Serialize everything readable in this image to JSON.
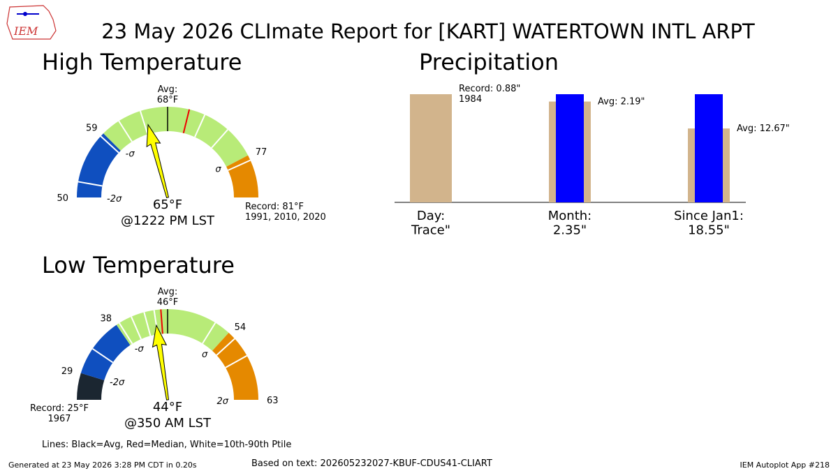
{
  "title": "23 May 2026 CLImate Report for [KART] WATERTOWN INTL ARPT",
  "logo": "IEM",
  "legend_note": "Lines: Black=Avg, Red=Median, White=10th-90th Ptile",
  "footer_left": "Generated at 23 May 2026 3:28 PM CDT in 0.20s",
  "footer_center": "Based on text: 202605232027-KBUF-CDUS41-CLIART",
  "footer_right": "IEM Autoplot App #218",
  "chart_data": [
    {
      "type": "gauge",
      "title": "High Temperature",
      "range": [
        50,
        81
      ],
      "avg": 68,
      "avg_label": "Avg:\n68°F",
      "median": 70,
      "percentiles": [
        52,
        58.5,
        61.5,
        64.5,
        71.5,
        74,
        77.5
      ],
      "value": 65,
      "value_label": "65°F",
      "time_label": "@1222 PM LST",
      "record_label": "Record: 81°F\n1991, 2010, 2020",
      "ticks": [
        50,
        59,
        77
      ],
      "sigma_marks": [
        {
          "value": 50,
          "label": "-2σ"
        },
        {
          "value": 59,
          "label": "-σ"
        },
        {
          "value": 77,
          "label": "σ"
        }
      ],
      "bands": [
        {
          "from": 50,
          "to": 59,
          "color": "#0f4fbf"
        },
        {
          "from": 59,
          "to": 77,
          "color": "#b8eb78"
        },
        {
          "from": 77,
          "to": 81,
          "color": "#e58900"
        }
      ]
    },
    {
      "type": "bar",
      "title": "Precipitation",
      "categories": [
        "Day:\nTrace\"",
        "Month:\n2.35\"",
        "Since Jan1:\n18.55\""
      ],
      "reference": {
        "color": "#d2b48c",
        "values": [
          0.88,
          2.19,
          12.67
        ],
        "value_labels": [
          "Record: 0.88\"\n1984",
          "Avg: 2.19\"",
          "Avg: 12.67\""
        ]
      },
      "observed": {
        "color": "#0000ff",
        "values": [
          null,
          2.35,
          18.55
        ]
      }
    },
    {
      "type": "gauge",
      "title": "Low Temperature",
      "range": [
        25,
        63
      ],
      "avg": 46,
      "avg_label": "Avg:\n46°F",
      "median": 45,
      "percentiles": [
        33,
        38.5,
        40.5,
        42.5,
        44,
        52,
        55,
        57.5
      ],
      "value": 44,
      "value_label": "44°F",
      "time_label": "@350 AM LST",
      "record_label": "Record: 25°F\n1967",
      "ticks": [
        29,
        38,
        54,
        63
      ],
      "sigma_marks": [
        {
          "value": 29,
          "label": "-2σ"
        },
        {
          "value": 38,
          "label": "-σ"
        },
        {
          "value": 54,
          "label": "σ"
        },
        {
          "value": 63,
          "label": "2σ"
        }
      ],
      "bands": [
        {
          "from": 25,
          "to": 29,
          "color": "#1b2631"
        },
        {
          "from": 29,
          "to": 38,
          "color": "#0f4fbf"
        },
        {
          "from": 38,
          "to": 54,
          "color": "#b8eb78"
        },
        {
          "from": 54,
          "to": 63,
          "color": "#e58900"
        }
      ]
    }
  ]
}
